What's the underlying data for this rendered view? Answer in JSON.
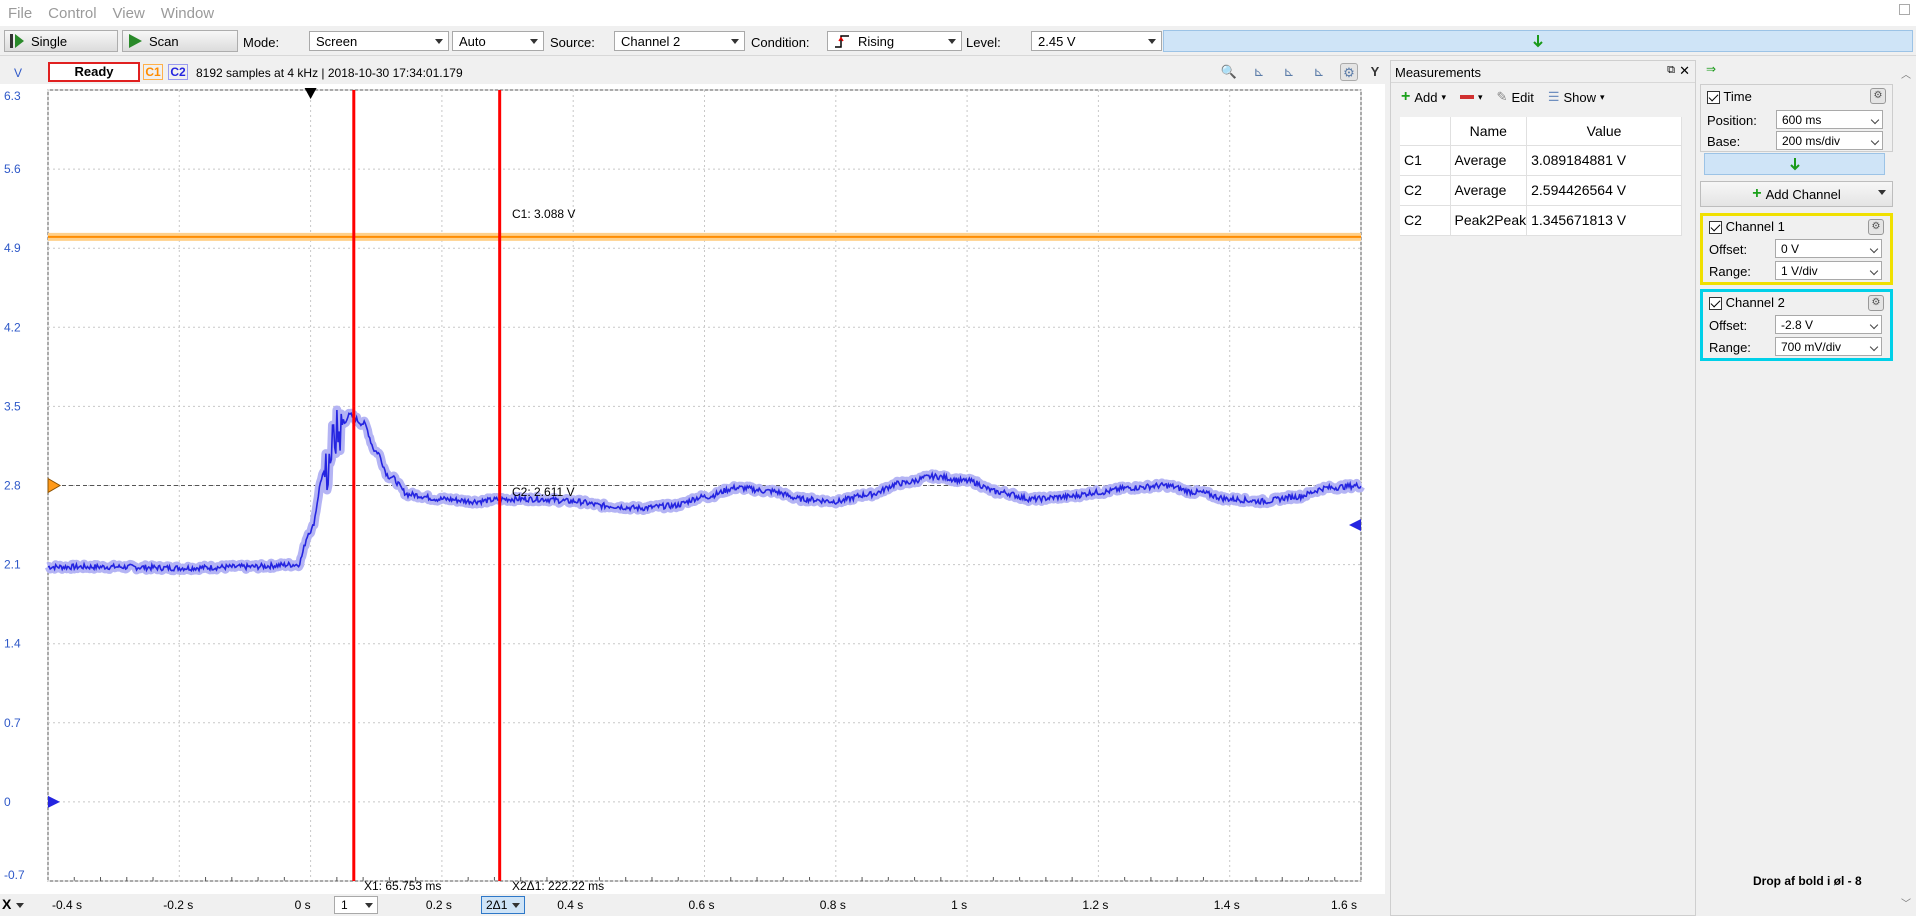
{
  "menu": [
    "File",
    "Control",
    "View",
    "Window"
  ],
  "toolbar": {
    "single_label": "Single",
    "scan_label": "Scan",
    "mode_label": "Mode:",
    "mode_value": "Screen",
    "auto_value": "Auto",
    "source_label": "Source:",
    "source_value": "Channel 2",
    "condition_label": "Condition:",
    "condition_value": "Rising",
    "level_label": "Level:",
    "level_value": "2.45 V"
  },
  "status": {
    "state": "Ready",
    "c1": "C1",
    "c2": "C2",
    "info": "8192 samples at 4 kHz | 2018-10-30 17:34:01.179"
  },
  "plot": {
    "y_unit": "V",
    "y_ticks": [
      "6.3",
      "5.6",
      "4.9",
      "4.2",
      "3.5",
      "2.8",
      "2.1",
      "1.4",
      "0.7",
      "0",
      "-0.7"
    ],
    "x_ticks": [
      "-0.4 s",
      "-0.2 s",
      "0 s",
      "0.2 s",
      "0.4 s",
      "0.6 s",
      "0.8 s",
      "1 s",
      "1.2 s",
      "1.4 s",
      "1.6 s"
    ],
    "c1_label": "C1: 3.088 V",
    "c2_label": "C2: 2.611 V",
    "x1_label": "X1: 65.753 ms",
    "x2_label": "X2Δ1: 222.22 ms",
    "cursor1_sel": "1",
    "cursor2_sel": "2Δ1",
    "x_axis_btn": "X",
    "c1_color": "#ff8c00",
    "c2_color": "#2424e0",
    "cursor_color": "#ff0000"
  },
  "chart_data": {
    "type": "line",
    "title": "",
    "xlabel": "",
    "ylabel": "V",
    "xlim": [
      -0.4,
      1.6
    ],
    "ylim": [
      -0.7,
      6.3
    ],
    "series": [
      {
        "name": "C1",
        "x": [
          -0.4,
          1.6
        ],
        "values": [
          5.0,
          5.0
        ]
      },
      {
        "name": "C2",
        "x": [
          -0.4,
          -0.3,
          -0.2,
          -0.1,
          -0.02,
          0.0,
          0.02,
          0.04,
          0.06,
          0.08,
          0.1,
          0.12,
          0.15,
          0.2,
          0.25,
          0.3,
          0.35,
          0.4,
          0.45,
          0.5,
          0.55,
          0.6,
          0.65,
          0.7,
          0.75,
          0.8,
          0.85,
          0.9,
          0.95,
          1.0,
          1.05,
          1.1,
          1.15,
          1.2,
          1.25,
          1.3,
          1.35,
          1.4,
          1.45,
          1.5,
          1.55,
          1.6
        ],
        "values": [
          2.08,
          2.08,
          2.07,
          2.08,
          2.1,
          2.4,
          2.9,
          3.25,
          3.42,
          3.35,
          3.1,
          2.88,
          2.72,
          2.68,
          2.66,
          2.68,
          2.68,
          2.66,
          2.62,
          2.6,
          2.62,
          2.7,
          2.78,
          2.75,
          2.68,
          2.66,
          2.72,
          2.82,
          2.88,
          2.84,
          2.74,
          2.68,
          2.7,
          2.74,
          2.78,
          2.8,
          2.74,
          2.68,
          2.66,
          2.7,
          2.78,
          2.8
        ]
      }
    ],
    "cursors": {
      "x1": 0.0658,
      "x2": 0.288
    }
  },
  "measurements": {
    "title": "Measurements",
    "add_label": "Add",
    "edit_label": "Edit",
    "show_label": "Show",
    "headers": [
      "",
      "Name",
      "Value"
    ],
    "rows": [
      {
        "ch": "C1",
        "name": "Average",
        "value": "3.089184881 V"
      },
      {
        "ch": "C2",
        "name": "Average",
        "value": "2.594426564 V"
      },
      {
        "ch": "C2",
        "name": "Peak2Peak",
        "value": "1.345671813 V"
      }
    ]
  },
  "time": {
    "label": "Time",
    "position_label": "Position:",
    "position_value": "600 ms",
    "base_label": "Base:",
    "base_value": "200 ms/div"
  },
  "add_channel_label": "Add Channel",
  "channel1": {
    "label": "Channel 1",
    "offset_label": "Offset:",
    "offset_value": "0 V",
    "range_label": "Range:",
    "range_value": "1 V/div",
    "color": "#f0e000"
  },
  "channel2": {
    "label": "Channel 2",
    "offset_label": "Offset:",
    "offset_value": "-2.8 V",
    "range_label": "Range:",
    "range_value": "700 mV/div",
    "color": "#00d0e8"
  },
  "footer_text": "Drop af bold i øl - 8"
}
